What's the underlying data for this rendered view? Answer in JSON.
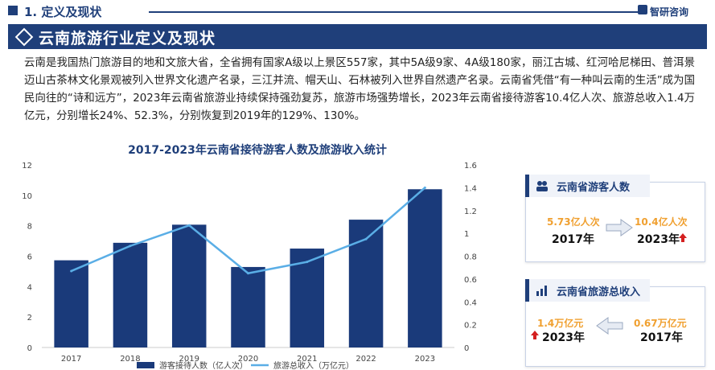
{
  "header": {
    "section_title": "1. 定义及现状",
    "brand": "智研咨询",
    "banner_title": "云南旅游行业定义及现状"
  },
  "intro_text": "云南是我国热门旅游目的地和文旅大省，全省拥有国家A级以上景区557家，其中5A级9家、4A级180家，丽江古城、红河哈尼梯田、普洱景迈山古茶林文化景观被列入世界文化遗产名录，三江并流、帽天山、石林被列入世界自然遗产名录。云南省凭借“有一种叫云南的生活”成为国民向往的“诗和远方”，2023年云南省旅游业持续保持强劲复苏，旅游市场强势增长，2023年云南省接待游客10.4亿人次、旅游总收入1.4万亿元，分别增长24%、52.3%，分别恢复到2019年的129%、130%。",
  "chart_data": {
    "type": "bar",
    "title": "2017-2023年云南省接待游客人数及旅游收入统计",
    "categories": [
      "2017",
      "2018",
      "2019",
      "2020",
      "2021",
      "2022",
      "2023"
    ],
    "series": [
      {
        "name": "游客接待人数（亿人次）",
        "type": "bar",
        "axis": "left",
        "color": "#1a3a7a",
        "values": [
          5.73,
          6.88,
          8.07,
          5.29,
          6.5,
          8.4,
          10.4
        ]
      },
      {
        "name": "旅游总收入（万亿元）",
        "type": "line",
        "axis": "right",
        "color": "#5aaee6",
        "values": [
          0.67,
          0.89,
          1.07,
          0.65,
          0.75,
          0.95,
          1.4
        ]
      }
    ],
    "left_axis": {
      "min": 0,
      "max": 12,
      "ticks": [
        "0",
        "2",
        "4",
        "6",
        "8",
        "10",
        "12"
      ]
    },
    "right_axis": {
      "min": 0,
      "max": 1.6,
      "ticks": [
        "0",
        "0.2",
        "0.4",
        "0.6",
        "0.8",
        "1",
        "1.2",
        "1.4",
        "1.6"
      ]
    },
    "legend_position": "bottom"
  },
  "cards": {
    "tourists": {
      "title": "云南省游客人数",
      "from_value": "5.73亿人次",
      "from_year": "2017年",
      "to_value": "10.4亿人次",
      "to_year": "2023年"
    },
    "revenue": {
      "title": "云南省旅游总收入",
      "latest_value": "1.4万亿元",
      "latest_year": "2023年",
      "base_value": "0.67万亿元",
      "base_year": "2017年"
    }
  },
  "colors": {
    "primary": "#1f3f7a",
    "accent": "#f0a030",
    "up": "#d42020"
  }
}
